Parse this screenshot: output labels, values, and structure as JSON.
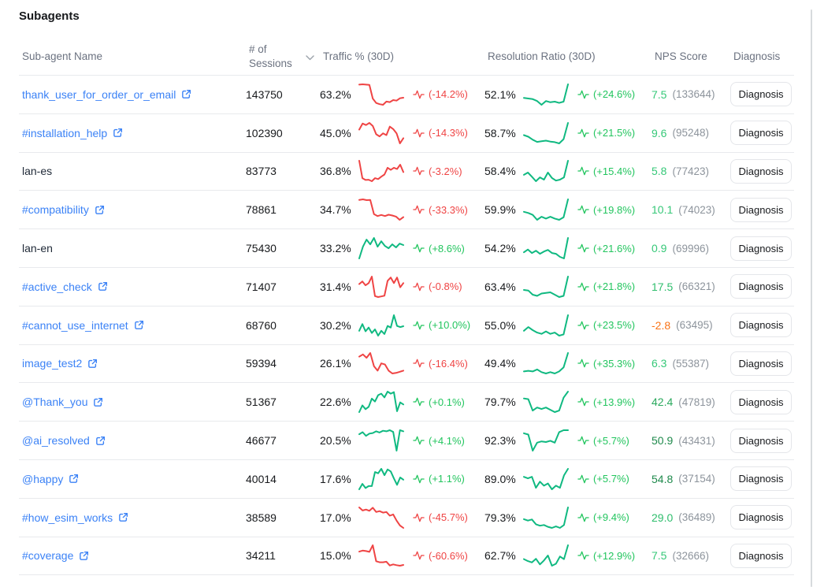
{
  "title": "Subagents",
  "colors": {
    "spark_up": "#10b981",
    "spark_down": "#ef4444",
    "change_up": "#22c55e",
    "change_down": "#ef4444",
    "link": "#3b82f6"
  },
  "table": {
    "columns": [
      "Sub-agent Name",
      "# of Sessions",
      "Traffic % (30D)",
      "Resolution Ratio (30D)",
      "NPS Score",
      "Diagnosis"
    ],
    "diagnosis_button_label": "Diagnosis",
    "rows": [
      {
        "name": "thank_user_for_order_or_email",
        "has_link": true,
        "sessions": "143750",
        "traffic": {
          "value": "63.2%",
          "change": "(-14.2%)",
          "trend": "down",
          "spark": [
            92,
            93,
            92,
            91,
            45,
            30,
            26,
            24,
            35,
            33,
            40,
            38,
            46,
            48
          ]
        },
        "resolution": {
          "value": "52.1%",
          "change": "(+24.6%)",
          "trend": "up",
          "spark": [
            52,
            50,
            48,
            42,
            30,
            42,
            38,
            40,
            36,
            40,
            95
          ]
        },
        "nps": {
          "score": "7.5",
          "color": "#36c878",
          "count": "(133644)"
        }
      },
      {
        "name": "#installation_help",
        "has_link": true,
        "sessions": "102390",
        "traffic": {
          "value": "45.0%",
          "change": "(-14.3%)",
          "trend": "down",
          "spark": [
            60,
            80,
            75,
            82,
            72,
            45,
            38,
            48,
            42,
            70,
            62,
            48,
            15,
            32
          ]
        },
        "resolution": {
          "value": "58.7%",
          "change": "(+21.5%)",
          "trend": "up",
          "spark": [
            55,
            50,
            40,
            33,
            35,
            37,
            34,
            32,
            28,
            42,
            95
          ]
        },
        "nps": {
          "score": "9.6",
          "color": "#36c878",
          "count": "(95248)"
        }
      },
      {
        "name": "lan-es",
        "has_link": false,
        "sessions": "83773",
        "traffic": {
          "value": "36.8%",
          "change": "(-3.2%)",
          "trend": "down",
          "spark": [
            85,
            28,
            22,
            23,
            18,
            28,
            25,
            33,
            40,
            62,
            55,
            62,
            58,
            72,
            48
          ]
        },
        "resolution": {
          "value": "58.4%",
          "change": "(+15.4%)",
          "trend": "up",
          "spark": [
            48,
            55,
            42,
            28,
            40,
            33,
            55,
            38,
            30,
            33,
            40,
            92
          ]
        },
        "nps": {
          "score": "5.8",
          "color": "#36c878",
          "count": "(77423)"
        }
      },
      {
        "name": "#compatibility",
        "has_link": true,
        "sessions": "78861",
        "traffic": {
          "value": "34.7%",
          "change": "(-33.3%)",
          "trend": "down",
          "spark": [
            88,
            90,
            87,
            88,
            35,
            28,
            32,
            28,
            33,
            30,
            26,
            14,
            24
          ]
        },
        "resolution": {
          "value": "59.9%",
          "change": "(+19.8%)",
          "trend": "up",
          "spark": [
            50,
            46,
            40,
            24,
            34,
            28,
            34,
            28,
            24,
            32,
            90
          ]
        },
        "nps": {
          "score": "10.1",
          "color": "#36c878",
          "count": "(74023)"
        }
      },
      {
        "name": "lan-en",
        "has_link": false,
        "sessions": "75430",
        "traffic": {
          "value": "33.2%",
          "change": "(+8.6%)",
          "trend": "up",
          "spark": [
            5,
            55,
            85,
            65,
            92,
            55,
            78,
            58,
            48,
            65,
            52,
            68,
            62
          ]
        },
        "resolution": {
          "value": "54.2%",
          "change": "(+21.6%)",
          "trend": "up",
          "spark": [
            48,
            55,
            46,
            52,
            44,
            50,
            54,
            46,
            44,
            36,
            32,
            85
          ]
        },
        "nps": {
          "score": "0.9",
          "color": "#36c878",
          "count": "(69996)"
        }
      },
      {
        "name": "#active_check",
        "has_link": true,
        "sessions": "71407",
        "traffic": {
          "value": "31.4%",
          "change": "(-0.8%)",
          "trend": "down",
          "spark": [
            52,
            60,
            48,
            55,
            75,
            15,
            12,
            14,
            16,
            62,
            72,
            55,
            72,
            42,
            55
          ]
        },
        "resolution": {
          "value": "63.4%",
          "change": "(+21.8%)",
          "trend": "up",
          "spark": [
            50,
            48,
            34,
            30,
            38,
            40,
            42,
            34,
            26,
            30,
            95
          ]
        },
        "nps": {
          "score": "17.5",
          "color": "#2fbe6d",
          "count": "(66321)"
        }
      },
      {
        "name": "#cannot_use_internet",
        "has_link": true,
        "sessions": "68760",
        "traffic": {
          "value": "30.2%",
          "change": "(+10.0%)",
          "trend": "up",
          "spark": [
            30,
            55,
            28,
            42,
            22,
            35,
            12,
            30,
            18,
            48,
            42,
            88,
            48,
            44,
            47
          ]
        },
        "resolution": {
          "value": "55.0%",
          "change": "(+23.5%)",
          "trend": "up",
          "spark": [
            44,
            56,
            46,
            38,
            34,
            42,
            34,
            38,
            28,
            32,
            95
          ]
        },
        "nps": {
          "score": "-2.8",
          "color": "#f97316",
          "count": "(63495)"
        }
      },
      {
        "name": "image_test2",
        "has_link": true,
        "sessions": "59394",
        "traffic": {
          "value": "26.1%",
          "change": "(-16.4%)",
          "trend": "down",
          "spark": [
            72,
            80,
            68,
            85,
            38,
            22,
            48,
            44,
            22,
            12,
            14,
            18,
            22
          ]
        },
        "resolution": {
          "value": "49.4%",
          "change": "(+35.3%)",
          "trend": "up",
          "spark": [
            40,
            42,
            40,
            46,
            38,
            34,
            38,
            34,
            40,
            52,
            95
          ]
        },
        "nps": {
          "score": "6.3",
          "color": "#36c878",
          "count": "(55387)"
        }
      },
      {
        "name": "@Thank_you",
        "has_link": true,
        "sessions": "51367",
        "traffic": {
          "value": "22.6%",
          "change": "(+0.1%)",
          "trend": "up",
          "spark": [
            22,
            45,
            32,
            40,
            68,
            58,
            80,
            85,
            72,
            92,
            85,
            90,
            25,
            55,
            48
          ]
        },
        "resolution": {
          "value": "79.7%",
          "change": "(+13.9%)",
          "trend": "up",
          "spark": [
            70,
            68,
            38,
            46,
            42,
            46,
            40,
            34,
            38,
            72,
            88
          ]
        },
        "nps": {
          "score": "42.4",
          "color": "#2aa95d",
          "count": "(47819)"
        }
      },
      {
        "name": "@ai_resolved",
        "has_link": true,
        "sessions": "46677",
        "traffic": {
          "value": "20.5%",
          "change": "(+4.1%)",
          "trend": "up",
          "spark": [
            68,
            75,
            62,
            70,
            72,
            78,
            74,
            80,
            78,
            82,
            76,
            10,
            82,
            78
          ]
        },
        "resolution": {
          "value": "92.3%",
          "change": "(+5.7%)",
          "trend": "up",
          "spark": [
            74,
            70,
            18,
            44,
            48,
            46,
            50,
            44,
            78,
            84,
            84
          ]
        },
        "nps": {
          "score": "50.9",
          "color": "#1f8a4c",
          "count": "(43431)"
        }
      },
      {
        "name": "@happy",
        "has_link": true,
        "sessions": "40014",
        "traffic": {
          "value": "17.6%",
          "change": "(+1.1%)",
          "trend": "up",
          "spark": [
            18,
            35,
            22,
            28,
            28,
            72,
            68,
            82,
            62,
            80,
            74,
            52,
            32,
            55,
            48
          ]
        },
        "resolution": {
          "value": "89.0%",
          "change": "(+5.7%)",
          "trend": "up",
          "spark": [
            68,
            64,
            68,
            38,
            55,
            44,
            50,
            34,
            44,
            38,
            72,
            90
          ]
        },
        "nps": {
          "score": "54.8",
          "color": "#1f8a4c",
          "count": "(37154)"
        }
      },
      {
        "name": "#how_esim_works",
        "has_link": true,
        "sessions": "38589",
        "traffic": {
          "value": "17.0%",
          "change": "(-45.7%)",
          "trend": "down",
          "spark": [
            85,
            75,
            78,
            74,
            84,
            70,
            73,
            68,
            70,
            58,
            62,
            42,
            26,
            18
          ]
        },
        "resolution": {
          "value": "79.3%",
          "change": "(+9.4%)",
          "trend": "up",
          "spark": [
            58,
            54,
            57,
            44,
            40,
            42,
            37,
            34,
            38,
            34,
            42,
            90
          ]
        },
        "nps": {
          "score": "29.0",
          "color": "#2fbe6d",
          "count": "(36489)"
        }
      },
      {
        "name": "#coverage",
        "has_link": true,
        "sessions": "34211",
        "traffic": {
          "value": "15.0%",
          "change": "(-60.6%)",
          "trend": "down",
          "spark": [
            68,
            72,
            70,
            67,
            92,
            32,
            28,
            28,
            30,
            16,
            20,
            17,
            15,
            18
          ]
        },
        "resolution": {
          "value": "62.7%",
          "change": "(+12.9%)",
          "trend": "up",
          "spark": [
            44,
            38,
            34,
            45,
            28,
            40,
            55,
            24,
            30,
            52,
            44,
            86
          ]
        },
        "nps": {
          "score": "7.5",
          "color": "#36c878",
          "count": "(32666)"
        }
      }
    ]
  }
}
